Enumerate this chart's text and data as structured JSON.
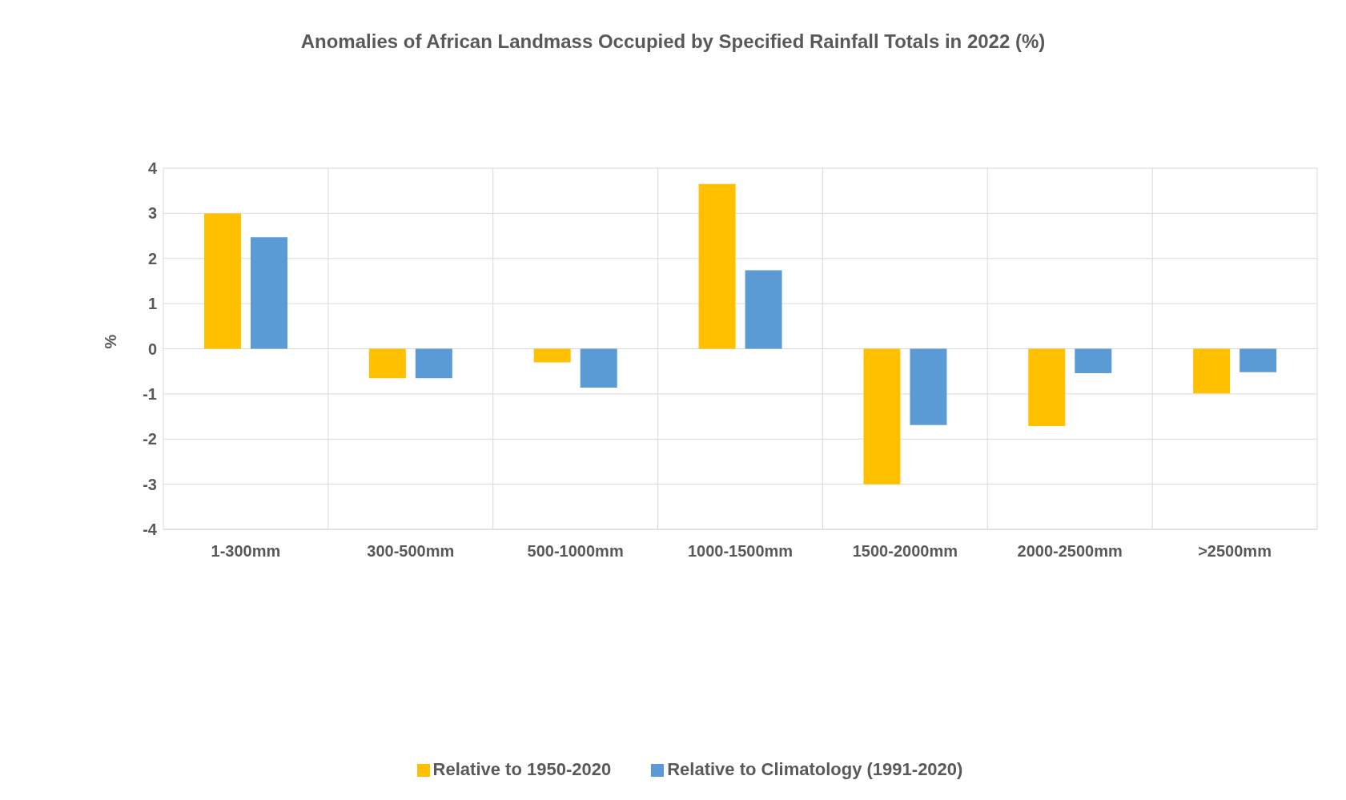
{
  "chart_data": {
    "type": "bar",
    "title": "Anomalies of African Landmass Occupied by Specified Rainfall Totals in 2022 (%)",
    "ylabel": "%",
    "categories": [
      "1-300mm",
      "300-500mm",
      "500-1000mm",
      "1000-1500mm",
      "1500-2000mm",
      "2000-2500mm",
      ">2500mm"
    ],
    "series": [
      {
        "name": "Relative to 1950-2020",
        "color": "#ffc000",
        "values": [
          3.0,
          -0.65,
          -0.3,
          3.65,
          -3.0,
          -1.71,
          -0.99
        ]
      },
      {
        "name": "Relative to Climatology (1991-2020)",
        "color": "#5b9bd5",
        "values": [
          2.47,
          -0.65,
          -0.86,
          1.74,
          -1.69,
          -0.54,
          -0.52
        ]
      }
    ],
    "ylim": [
      -4,
      4
    ],
    "yticks": [
      -4,
      -3,
      -2,
      -1,
      0,
      1,
      2,
      3,
      4
    ],
    "grid": true,
    "legend": "bottom"
  }
}
